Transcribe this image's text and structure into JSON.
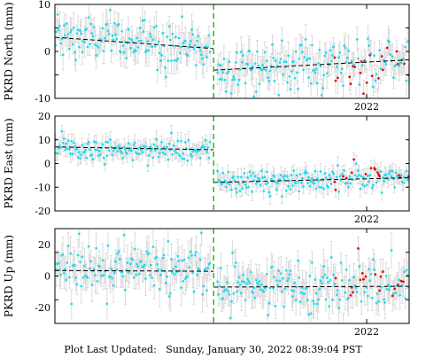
{
  "footer": {
    "label": "Plot Last Updated:",
    "value": "Sunday, January 30, 2022 08:39:04 PST"
  },
  "colors": {
    "points": "#22ddee",
    "recent_points": "#dd1111",
    "error_bars": "#d4d4d4",
    "trend_line": "#000000",
    "offset_line": "#22bb22",
    "axes": "#000000"
  },
  "chart_data": [
    {
      "type": "scatter",
      "ylabel": "PKRD North (mm)",
      "ylim": [
        -10,
        10
      ],
      "yticks": [
        -10,
        0,
        10
      ],
      "xticks": [
        "2022"
      ],
      "x_range": [
        2020.9,
        2022.15
      ],
      "offset_x": 2021.46,
      "error": 2.6,
      "red_from": 2021.88,
      "trend": [
        {
          "x": [
            2020.9,
            2021.46
          ],
          "y": [
            3.0,
            0.6
          ]
        },
        {
          "x": [
            2021.46,
            2022.15
          ],
          "y": [
            -4.0,
            -1.8
          ]
        }
      ],
      "base": [
        {
          "x": 2020.9,
          "y": 3.0
        },
        {
          "x": 2021.25,
          "y": 2.0
        },
        {
          "x": 2021.46,
          "y": 0.6
        },
        {
          "x": 2021.47,
          "y": -3.8
        },
        {
          "x": 2021.7,
          "y": -3.0
        },
        {
          "x": 2021.95,
          "y": -2.2
        },
        {
          "x": 2022.15,
          "y": -1.8
        }
      ],
      "red_base": [
        {
          "x": 2021.88,
          "y": -2.5
        },
        {
          "x": 2021.91,
          "y": -6.5
        },
        {
          "x": 2021.94,
          "y": -4.0
        },
        {
          "x": 2022.08,
          "y": -2.2
        },
        {
          "x": 2022.15,
          "y": -3.5
        }
      ],
      "spread": 2.6,
      "count": 330
    },
    {
      "type": "scatter",
      "ylabel": "PKRD East (mm)",
      "ylim": [
        -20,
        20
      ],
      "yticks": [
        -20,
        -10,
        0,
        10,
        20
      ],
      "xticks": [
        "2022"
      ],
      "x_range": [
        2020.9,
        2022.15
      ],
      "offset_x": 2021.46,
      "error": 3.0,
      "red_from": 2021.88,
      "trend": [
        {
          "x": [
            2020.9,
            2021.46
          ],
          "y": [
            7.0,
            5.8
          ]
        },
        {
          "x": [
            2021.46,
            2022.15
          ],
          "y": [
            -8.0,
            -6.0
          ]
        }
      ],
      "base": [
        {
          "x": 2020.9,
          "y": 7.0
        },
        {
          "x": 2021.15,
          "y": 5.5
        },
        {
          "x": 2021.46,
          "y": 6.0
        },
        {
          "x": 2021.47,
          "y": -8.0
        },
        {
          "x": 2021.8,
          "y": -7.0
        },
        {
          "x": 2022.15,
          "y": -6.0
        }
      ],
      "red_base": [
        {
          "x": 2021.88,
          "y": -6.0
        },
        {
          "x": 2021.95,
          "y": -4.0
        },
        {
          "x": 2022.08,
          "y": -2.0
        },
        {
          "x": 2022.15,
          "y": -5.0
        }
      ],
      "spread": 2.6,
      "count": 330
    },
    {
      "type": "scatter",
      "ylabel": "PKRD Up (mm)",
      "ylim": [
        -30,
        30
      ],
      "yticks": [
        -20,
        0,
        20
      ],
      "xticks": [
        "2022"
      ],
      "x_range": [
        2020.9,
        2022.15
      ],
      "offset_x": 2021.46,
      "error": 9.0,
      "red_from": 2021.88,
      "trend": [
        {
          "x": [
            2020.9,
            2021.46
          ],
          "y": [
            3.5,
            3.0
          ]
        },
        {
          "x": [
            2021.46,
            2022.15
          ],
          "y": [
            -7.0,
            -6.5
          ]
        }
      ],
      "base": [
        {
          "x": 2020.9,
          "y": 3.5
        },
        {
          "x": 2021.15,
          "y": 6.0
        },
        {
          "x": 2021.46,
          "y": 3.0
        },
        {
          "x": 2021.47,
          "y": -7.0
        },
        {
          "x": 2021.8,
          "y": -6.0
        },
        {
          "x": 2022.15,
          "y": -6.5
        }
      ],
      "red_base": [
        {
          "x": 2021.88,
          "y": -6.0
        },
        {
          "x": 2022.15,
          "y": -6.0
        }
      ],
      "spread": 8.0,
      "count": 330
    }
  ]
}
